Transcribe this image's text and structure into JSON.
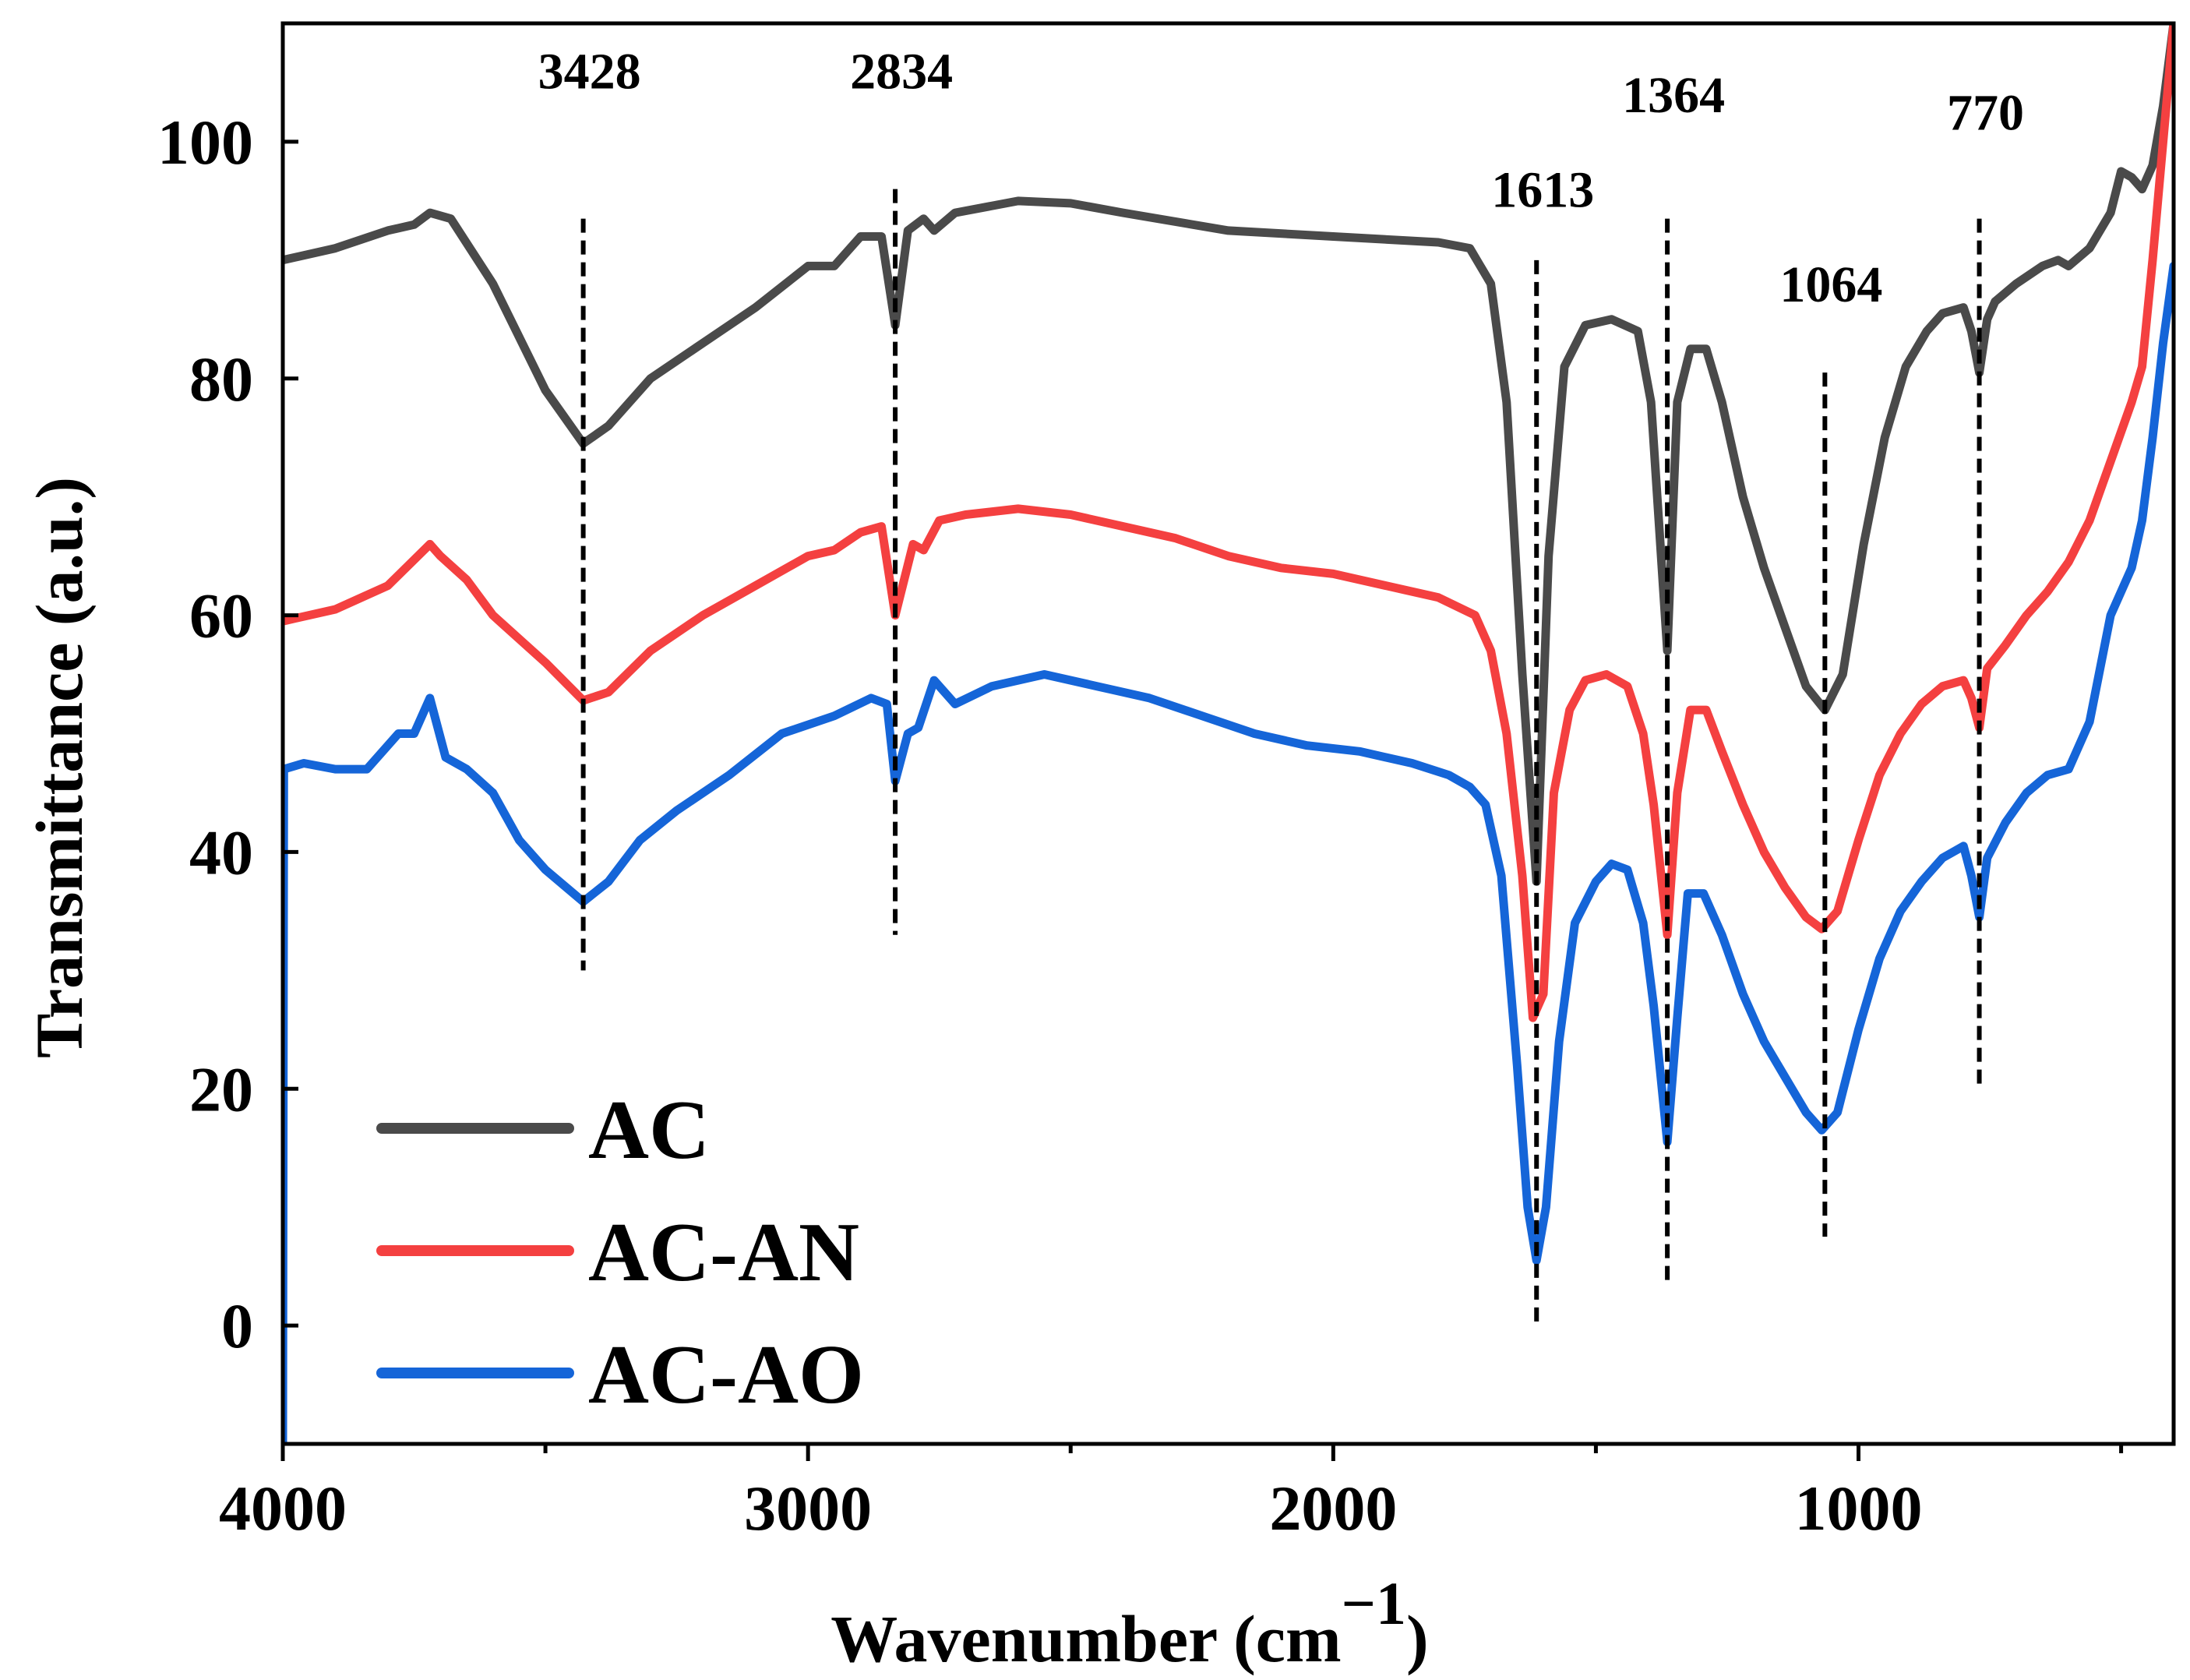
{
  "chart_data": {
    "type": "line",
    "title": "",
    "xlabel": "Wavenumber (cm",
    "xlabel_sup": "−1",
    "xlabel_close": ")",
    "ylabel": "Transmittance (a.u.)",
    "xlim": [
      4000,
      400
    ],
    "ylim": [
      -10,
      110
    ],
    "x_ticks": [
      4000,
      3000,
      2000,
      1000
    ],
    "x_minor_ticks": [
      3500,
      2500,
      1500,
      500
    ],
    "y_ticks": [
      0,
      20,
      40,
      60,
      80,
      100
    ],
    "legend_position": "bottom-left",
    "series": [
      {
        "name": "AC",
        "color": "#4a4a4a",
        "points": [
          [
            4000,
            90
          ],
          [
            3900,
            91
          ],
          [
            3800,
            92.5
          ],
          [
            3750,
            93
          ],
          [
            3720,
            94
          ],
          [
            3680,
            93.5
          ],
          [
            3600,
            88
          ],
          [
            3500,
            79
          ],
          [
            3428,
            74.5
          ],
          [
            3380,
            76
          ],
          [
            3300,
            80
          ],
          [
            3200,
            83
          ],
          [
            3100,
            86
          ],
          [
            3000,
            89.5
          ],
          [
            2950,
            89.5
          ],
          [
            2900,
            92
          ],
          [
            2860,
            92
          ],
          [
            2834,
            84.5
          ],
          [
            2810,
            92.5
          ],
          [
            2780,
            93.5
          ],
          [
            2760,
            92.5
          ],
          [
            2720,
            94
          ],
          [
            2600,
            95
          ],
          [
            2500,
            94.8
          ],
          [
            2400,
            94
          ],
          [
            2200,
            92.5
          ],
          [
            2000,
            92
          ],
          [
            1800,
            91.5
          ],
          [
            1740,
            91
          ],
          [
            1700,
            88
          ],
          [
            1670,
            78
          ],
          [
            1640,
            55
          ],
          [
            1613,
            37.5
          ],
          [
            1590,
            65
          ],
          [
            1560,
            81
          ],
          [
            1520,
            84.5
          ],
          [
            1470,
            85
          ],
          [
            1420,
            84
          ],
          [
            1395,
            78
          ],
          [
            1364,
            57
          ],
          [
            1345,
            78
          ],
          [
            1320,
            82.5
          ],
          [
            1290,
            82.5
          ],
          [
            1260,
            78
          ],
          [
            1220,
            70
          ],
          [
            1180,
            64
          ],
          [
            1140,
            59
          ],
          [
            1100,
            54
          ],
          [
            1064,
            52
          ],
          [
            1030,
            55
          ],
          [
            990,
            66
          ],
          [
            950,
            75
          ],
          [
            910,
            81
          ],
          [
            870,
            84
          ],
          [
            840,
            85.5
          ],
          [
            800,
            86
          ],
          [
            785,
            84
          ],
          [
            770,
            80.5
          ],
          [
            755,
            85
          ],
          [
            740,
            86.5
          ],
          [
            700,
            88
          ],
          [
            650,
            89.5
          ],
          [
            620,
            90
          ],
          [
            600,
            89.5
          ],
          [
            560,
            91
          ],
          [
            520,
            94
          ],
          [
            500,
            97.5
          ],
          [
            480,
            97
          ],
          [
            460,
            96
          ],
          [
            440,
            98
          ],
          [
            420,
            103
          ],
          [
            400,
            110
          ]
        ]
      },
      {
        "name": "AC-AN",
        "color": "#f44040",
        "points": [
          [
            4000,
            59.5
          ],
          [
            3900,
            60.5
          ],
          [
            3800,
            62.5
          ],
          [
            3720,
            66
          ],
          [
            3700,
            65
          ],
          [
            3650,
            63
          ],
          [
            3600,
            60
          ],
          [
            3500,
            56
          ],
          [
            3428,
            52.8
          ],
          [
            3380,
            53.5
          ],
          [
            3300,
            57
          ],
          [
            3200,
            60
          ],
          [
            3100,
            62.5
          ],
          [
            3000,
            65
          ],
          [
            2950,
            65.5
          ],
          [
            2900,
            67
          ],
          [
            2860,
            67.5
          ],
          [
            2834,
            60
          ],
          [
            2800,
            66
          ],
          [
            2780,
            65.5
          ],
          [
            2750,
            68
          ],
          [
            2700,
            68.5
          ],
          [
            2600,
            69
          ],
          [
            2500,
            68.5
          ],
          [
            2400,
            67.5
          ],
          [
            2300,
            66.5
          ],
          [
            2200,
            65
          ],
          [
            2100,
            64
          ],
          [
            2000,
            63.5
          ],
          [
            1900,
            62.5
          ],
          [
            1800,
            61.5
          ],
          [
            1730,
            60
          ],
          [
            1700,
            57
          ],
          [
            1670,
            50
          ],
          [
            1640,
            38
          ],
          [
            1620,
            26
          ],
          [
            1600,
            28
          ],
          [
            1580,
            45
          ],
          [
            1550,
            52
          ],
          [
            1520,
            54.5
          ],
          [
            1480,
            55
          ],
          [
            1440,
            54
          ],
          [
            1410,
            50
          ],
          [
            1390,
            44
          ],
          [
            1364,
            33
          ],
          [
            1345,
            45
          ],
          [
            1320,
            52
          ],
          [
            1290,
            52
          ],
          [
            1260,
            48.5
          ],
          [
            1220,
            44
          ],
          [
            1180,
            40
          ],
          [
            1140,
            37
          ],
          [
            1100,
            34.5
          ],
          [
            1070,
            33.5
          ],
          [
            1040,
            35
          ],
          [
            1000,
            41
          ],
          [
            960,
            46.5
          ],
          [
            920,
            50
          ],
          [
            880,
            52.5
          ],
          [
            840,
            54
          ],
          [
            800,
            54.5
          ],
          [
            785,
            53
          ],
          [
            770,
            50.5
          ],
          [
            755,
            55.5
          ],
          [
            720,
            57.5
          ],
          [
            680,
            60
          ],
          [
            640,
            62
          ],
          [
            600,
            64.5
          ],
          [
            560,
            68
          ],
          [
            520,
            73
          ],
          [
            480,
            78
          ],
          [
            460,
            81
          ],
          [
            440,
            90
          ],
          [
            420,
            100
          ],
          [
            400,
            110
          ]
        ]
      },
      {
        "name": "AC-AO",
        "color": "#1565d8",
        "points": [
          [
            4000,
            -10
          ],
          [
            3998,
            47
          ],
          [
            3960,
            47.5
          ],
          [
            3900,
            47
          ],
          [
            3840,
            47
          ],
          [
            3780,
            50
          ],
          [
            3750,
            50
          ],
          [
            3720,
            53
          ],
          [
            3690,
            48
          ],
          [
            3650,
            47
          ],
          [
            3600,
            45
          ],
          [
            3550,
            41
          ],
          [
            3500,
            38.5
          ],
          [
            3428,
            35.8
          ],
          [
            3380,
            37.5
          ],
          [
            3320,
            41
          ],
          [
            3250,
            43.5
          ],
          [
            3150,
            46.5
          ],
          [
            3050,
            50
          ],
          [
            2950,
            51.5
          ],
          [
            2880,
            53
          ],
          [
            2850,
            52.5
          ],
          [
            2834,
            46
          ],
          [
            2810,
            50
          ],
          [
            2790,
            50.5
          ],
          [
            2760,
            54.5
          ],
          [
            2720,
            52.5
          ],
          [
            2650,
            54
          ],
          [
            2550,
            55
          ],
          [
            2450,
            54
          ],
          [
            2350,
            53
          ],
          [
            2250,
            51.5
          ],
          [
            2150,
            50
          ],
          [
            2050,
            49
          ],
          [
            1950,
            48.5
          ],
          [
            1850,
            47.5
          ],
          [
            1780,
            46.5
          ],
          [
            1740,
            45.5
          ],
          [
            1710,
            44
          ],
          [
            1680,
            38
          ],
          [
            1650,
            22
          ],
          [
            1630,
            10
          ],
          [
            1613,
            5.5
          ],
          [
            1595,
            10
          ],
          [
            1570,
            24
          ],
          [
            1540,
            34
          ],
          [
            1500,
            37.5
          ],
          [
            1470,
            39
          ],
          [
            1440,
            38.5
          ],
          [
            1410,
            34
          ],
          [
            1390,
            27
          ],
          [
            1364,
            15.5
          ],
          [
            1345,
            26
          ],
          [
            1325,
            36.5
          ],
          [
            1295,
            36.5
          ],
          [
            1260,
            33
          ],
          [
            1220,
            28
          ],
          [
            1180,
            24
          ],
          [
            1140,
            21
          ],
          [
            1100,
            18
          ],
          [
            1070,
            16.5
          ],
          [
            1040,
            18
          ],
          [
            1000,
            25
          ],
          [
            960,
            31
          ],
          [
            920,
            35
          ],
          [
            880,
            37.5
          ],
          [
            840,
            39.5
          ],
          [
            800,
            40.5
          ],
          [
            785,
            38
          ],
          [
            770,
            34.5
          ],
          [
            755,
            39.5
          ],
          [
            720,
            42.5
          ],
          [
            680,
            45
          ],
          [
            640,
            46.5
          ],
          [
            600,
            47
          ],
          [
            560,
            51
          ],
          [
            520,
            60
          ],
          [
            480,
            64
          ],
          [
            460,
            68
          ],
          [
            440,
            75
          ],
          [
            420,
            83
          ],
          [
            400,
            89.5
          ]
        ]
      }
    ],
    "peaks": [
      {
        "label": "3428",
        "x": 3428,
        "line_top": 93.5,
        "line_bottom": 30,
        "label_y": 104.5
      },
      {
        "label": "2834",
        "x": 2834,
        "line_top": 96,
        "line_bottom": 33,
        "label_y": 104.5
      },
      {
        "label": "1613",
        "x": 1613,
        "line_top": 90,
        "line_bottom": 0,
        "label_y": 94.5
      },
      {
        "label": "1364",
        "x": 1364,
        "line_top": 93.5,
        "line_bottom": 3.5,
        "label_y": 102.5
      },
      {
        "label": "1064",
        "x": 1064,
        "line_top": 80.5,
        "line_bottom": 7.5,
        "label_y": 86.5
      },
      {
        "label": "770",
        "x": 770,
        "line_top": 93.5,
        "line_bottom": 20,
        "label_y": 101
      }
    ]
  }
}
